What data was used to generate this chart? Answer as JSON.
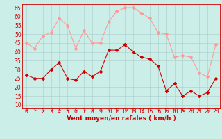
{
  "hours": [
    0,
    1,
    2,
    3,
    4,
    5,
    6,
    7,
    8,
    9,
    10,
    11,
    12,
    13,
    14,
    15,
    16,
    17,
    18,
    19,
    20,
    21,
    22,
    23
  ],
  "wind_avg": [
    27,
    25,
    25,
    30,
    34,
    25,
    24,
    29,
    26,
    29,
    41,
    41,
    44,
    40,
    37,
    36,
    32,
    18,
    22,
    15,
    18,
    15,
    17,
    25
  ],
  "wind_gust": [
    45,
    42,
    49,
    51,
    59,
    55,
    42,
    52,
    45,
    45,
    57,
    63,
    65,
    65,
    62,
    59,
    51,
    50,
    37,
    38,
    37,
    28,
    26,
    44
  ],
  "xlabel": "Vent moyen/en rafales ( km/h )",
  "yticks": [
    10,
    15,
    20,
    25,
    30,
    35,
    40,
    45,
    50,
    55,
    60,
    65
  ],
  "ymin": 8,
  "ymax": 67,
  "bg_color": "#cceee8",
  "grid_color": "#aacccc",
  "line_avg_color": "#cc0000",
  "line_gust_color": "#ff9999",
  "marker_size": 2.0,
  "line_width": 0.8,
  "tick_label_color": "#cc0000",
  "xlabel_color": "#cc0000",
  "axis_label_fontsize": 6.5,
  "tick_fontsize": 5.5,
  "spine_color": "#cc0000"
}
